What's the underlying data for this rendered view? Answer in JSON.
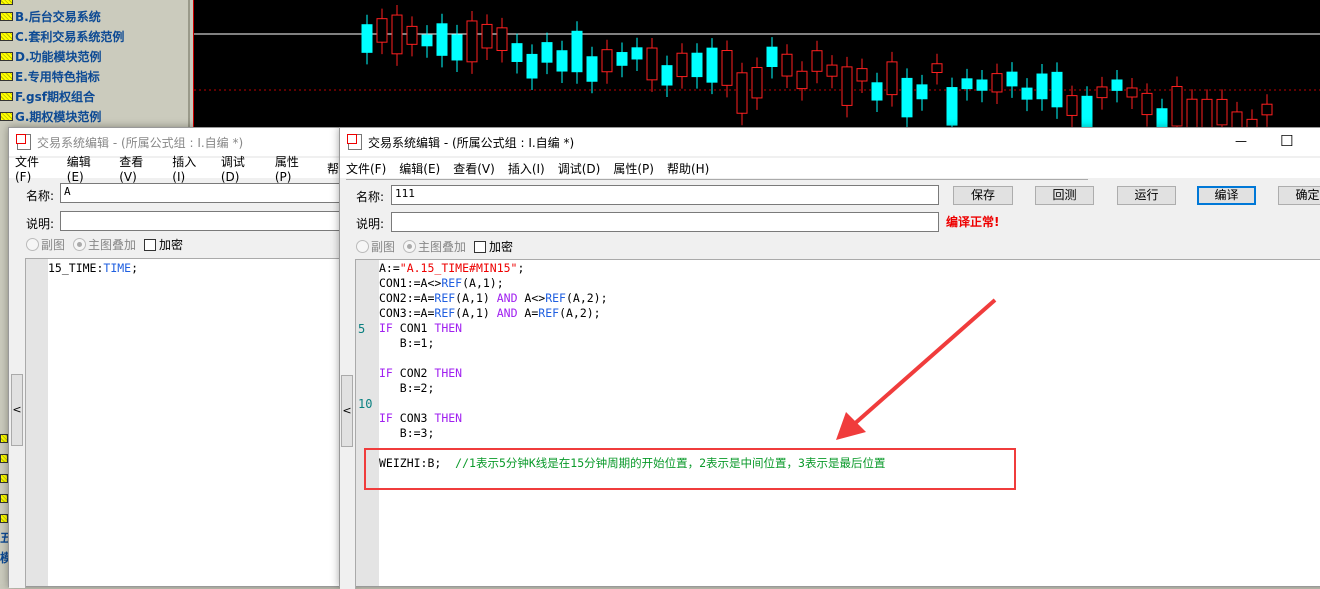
{
  "tree": {
    "items": [
      {
        "label": "B.后台交易系统"
      },
      {
        "label": "C.套利交易系统范例"
      },
      {
        "label": "D.功能模块范例"
      },
      {
        "label": "E.专用特色指标"
      },
      {
        "label": "F.gsf期权组合"
      },
      {
        "label": "G.期权模块范例"
      }
    ],
    "partial_labels": [
      "五",
      "模"
    ]
  },
  "chart": {
    "up_color": "#ff2020",
    "down_color": "#00ffff",
    "ref_line_color": "#ffffff",
    "dotted_color": "#c00000"
  },
  "left_window": {
    "title": "交易系统编辑 - (所属公式组 : I.自编 *)",
    "menu": [
      "文件(F)",
      "编辑(E)",
      "查看(V)",
      "插入(I)",
      "调试(D)",
      "属性(P)",
      "帮"
    ],
    "name_label": "名称:",
    "name_value": "A",
    "desc_label": "说明:",
    "desc_value": "",
    "radio_sub": "副图",
    "radio_main": "主图叠加",
    "encrypt": "加密",
    "code": [
      [
        {
          "t": "15_TIME:",
          "c": ""
        },
        {
          "t": "TIME",
          "c": "k-blue"
        },
        {
          "t": ";",
          "c": ""
        }
      ]
    ],
    "collapse_glyph": "<"
  },
  "right_window": {
    "title": "交易系统编辑 - (所属公式组 : I.自编 *)",
    "minimize": "—",
    "maximize": "☐",
    "menu": [
      "文件(F)",
      "编辑(E)",
      "查看(V)",
      "插入(I)",
      "调试(D)",
      "属性(P)",
      "帮助(H)"
    ],
    "name_label": "名称:",
    "name_value": "111",
    "desc_label": "说明:",
    "desc_value": "",
    "buttons": {
      "save": "保存",
      "backtest": "回测",
      "run": "运行",
      "compile": "编译",
      "ok": "确定"
    },
    "status": "编译正常!",
    "radio_sub": "副图",
    "radio_main": "主图叠加",
    "encrypt": "加密",
    "collapse_glyph": "<",
    "line_numbers": [
      {
        "line": 5,
        "label": "5"
      },
      {
        "line": 10,
        "label": "10"
      }
    ],
    "code": [
      [
        {
          "t": "A:=",
          "c": ""
        },
        {
          "t": "\"A.15_TIME#MIN15\"",
          "c": "k-red"
        },
        {
          "t": ";",
          "c": ""
        }
      ],
      [
        {
          "t": "CON1:=A<>",
          "c": ""
        },
        {
          "t": "REF",
          "c": "k-blue"
        },
        {
          "t": "(A,1);",
          "c": ""
        }
      ],
      [
        {
          "t": "CON2:=A=",
          "c": ""
        },
        {
          "t": "REF",
          "c": "k-blue"
        },
        {
          "t": "(A,1) ",
          "c": ""
        },
        {
          "t": "AND",
          "c": "k-purple"
        },
        {
          "t": " A<>",
          "c": ""
        },
        {
          "t": "REF",
          "c": "k-blue"
        },
        {
          "t": "(A,2);",
          "c": ""
        }
      ],
      [
        {
          "t": "CON3:=A=",
          "c": ""
        },
        {
          "t": "REF",
          "c": "k-blue"
        },
        {
          "t": "(A,1) ",
          "c": ""
        },
        {
          "t": "AND",
          "c": "k-purple"
        },
        {
          "t": " A=",
          "c": ""
        },
        {
          "t": "REF",
          "c": "k-blue"
        },
        {
          "t": "(A,2);",
          "c": ""
        }
      ],
      [
        {
          "t": "IF",
          "c": "k-purple"
        },
        {
          "t": " CON1 ",
          "c": ""
        },
        {
          "t": "THEN",
          "c": "k-purple"
        }
      ],
      [
        {
          "t": "   B:=1;",
          "c": ""
        }
      ],
      [],
      [
        {
          "t": "IF",
          "c": "k-purple"
        },
        {
          "t": " CON2 ",
          "c": ""
        },
        {
          "t": "THEN",
          "c": "k-purple"
        }
      ],
      [
        {
          "t": "   B:=2;",
          "c": ""
        }
      ],
      [],
      [
        {
          "t": "IF",
          "c": "k-purple"
        },
        {
          "t": " CON3 ",
          "c": ""
        },
        {
          "t": "THEN",
          "c": "k-purple"
        }
      ],
      [
        {
          "t": "   B:=3;",
          "c": ""
        }
      ],
      [],
      [
        {
          "t": "WEIZHI:B;  ",
          "c": ""
        },
        {
          "t": "//1表示5分钟K线是在15分钟周期的开始位置，2表示是中间位置，3表示是最后位置",
          "c": "k-green"
        }
      ]
    ],
    "annotation_color": "#f03c3c"
  }
}
